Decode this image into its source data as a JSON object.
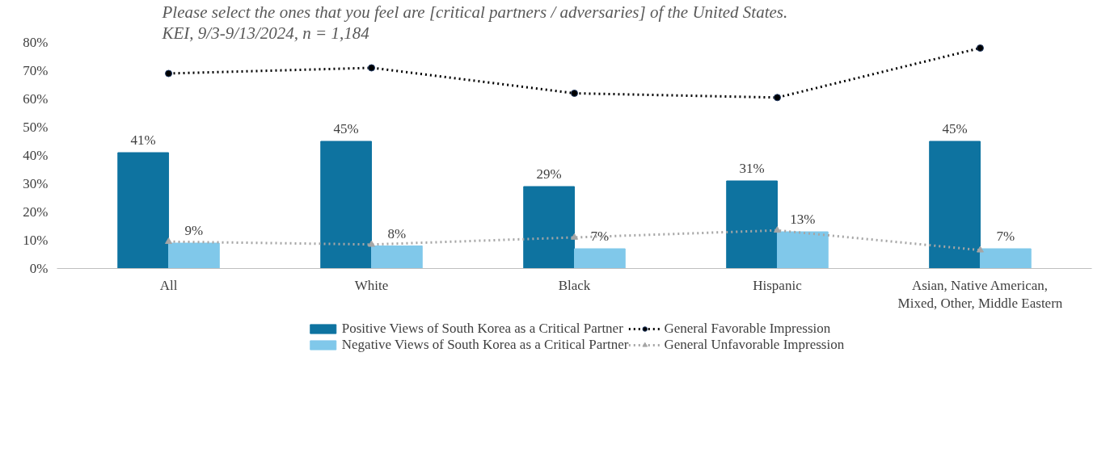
{
  "chart_data": {
    "type": "bar",
    "title": "Please select the ones that you feel are [critical partners / adversaries] of the United States.",
    "subtitle": "KEI, 9/3-9/13/2024, n = 1,184",
    "categories": [
      "All",
      "White",
      "Black",
      "Hispanic",
      "Asian, Native American, Mixed, Other, Middle Eastern"
    ],
    "series": [
      {
        "name": "Positive Views of South Korea as a Critical Partner",
        "color": "#0e73a0",
        "values": [
          41,
          45,
          29,
          31,
          45
        ],
        "value_labels": [
          "41%",
          "45%",
          "29%",
          "31%",
          "45%"
        ]
      },
      {
        "name": "Negative Views of South Korea as a Critical Partner",
        "type": "bar",
        "color": "#80c8ea",
        "values": [
          9,
          8,
          7,
          13,
          7
        ],
        "value_labels": [
          "9%",
          "8%",
          "7%",
          "13%",
          "7%"
        ]
      },
      {
        "name": "General Favorable Impression",
        "type": "line",
        "color": "#000000",
        "marker": "circle",
        "line_style": "dotted",
        "values": [
          69,
          71,
          62,
          60.5,
          78
        ]
      },
      {
        "name": "General Unfavorable Impression",
        "type": "line",
        "color": "#a6a6a6",
        "marker": "triangle",
        "line_style": "dotted",
        "values": [
          9.5,
          8.5,
          11,
          13.5,
          6.5
        ]
      }
    ],
    "ylim": [
      0,
      80
    ],
    "yticks": [
      {
        "value": 0,
        "label": "0%"
      },
      {
        "value": 10,
        "label": "10%"
      },
      {
        "value": 20,
        "label": "20%"
      },
      {
        "value": 30,
        "label": "30%"
      },
      {
        "value": 40,
        "label": "40%"
      },
      {
        "value": 50,
        "label": "50%"
      },
      {
        "value": 60,
        "label": "60%"
      },
      {
        "value": 70,
        "label": "70%"
      },
      {
        "value": 80,
        "label": "80%"
      }
    ],
    "grid": false,
    "legend": "bottom"
  }
}
